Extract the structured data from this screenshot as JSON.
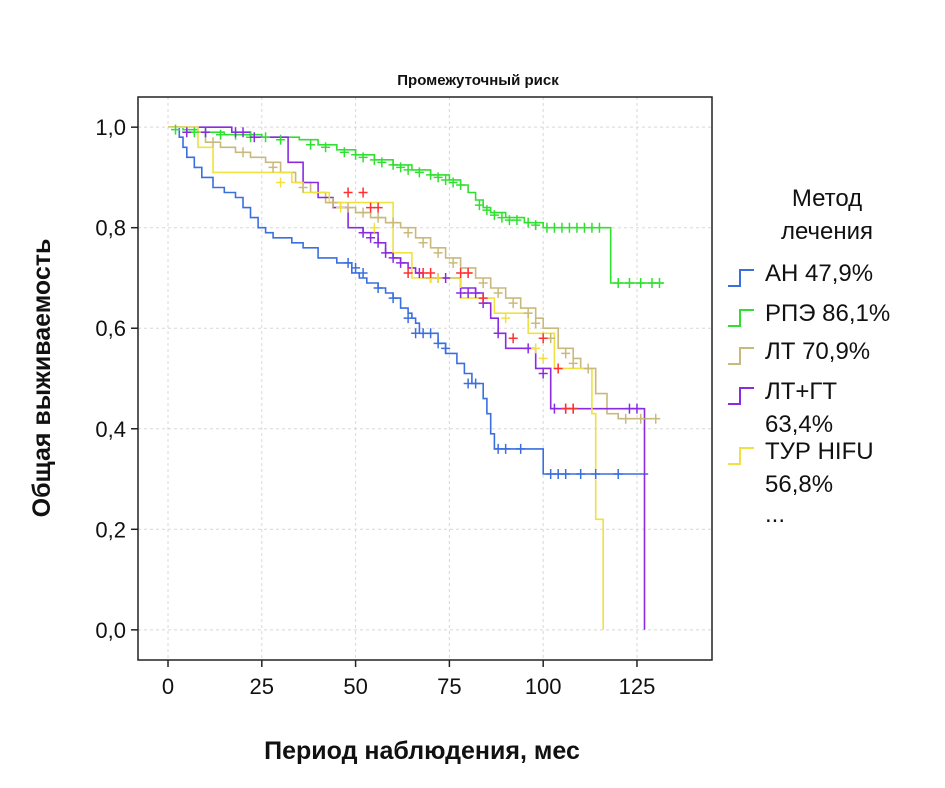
{
  "chart_data": {
    "type": "line",
    "title": "Промежуточный риск",
    "xlabel": "Период наблюдения, мес",
    "ylabel": "Общая выживаемость",
    "xlim": [
      -8,
      145
    ],
    "ylim": [
      -0.06,
      1.06
    ],
    "x_ticks": [
      0,
      25,
      50,
      75,
      100,
      125
    ],
    "x_tick_labels": [
      "0",
      "25",
      "50",
      "75",
      "100",
      "125"
    ],
    "y_ticks": [
      0.0,
      0.2,
      0.4,
      0.6,
      0.8,
      1.0
    ],
    "y_tick_labels": [
      "0,0",
      "0,2",
      "0,4",
      "0,6",
      "0,8",
      "1,0"
    ],
    "grid": true,
    "legend_position": "right",
    "legend_title": [
      "Метод",
      "лечения"
    ],
    "legend_more": "...",
    "series": [
      {
        "name": "АН 47,9%",
        "label_lines": [
          "АН 47,9%"
        ],
        "color": "#3a6fe0",
        "steps": [
          [
            0,
            1.0
          ],
          [
            3,
            0.98
          ],
          [
            4,
            0.96
          ],
          [
            5,
            0.94
          ],
          [
            7,
            0.92
          ],
          [
            9,
            0.9
          ],
          [
            12,
            0.88
          ],
          [
            15,
            0.87
          ],
          [
            18,
            0.86
          ],
          [
            20,
            0.84
          ],
          [
            22,
            0.82
          ],
          [
            24,
            0.8
          ],
          [
            26,
            0.79
          ],
          [
            28,
            0.78
          ],
          [
            33,
            0.77
          ],
          [
            36,
            0.76
          ],
          [
            40,
            0.74
          ],
          [
            45,
            0.73
          ],
          [
            49,
            0.71
          ],
          [
            51,
            0.7
          ],
          [
            53,
            0.69
          ],
          [
            56,
            0.68
          ],
          [
            58,
            0.67
          ],
          [
            60,
            0.66
          ],
          [
            62,
            0.64
          ],
          [
            64,
            0.63
          ],
          [
            65,
            0.62
          ],
          [
            66,
            0.61
          ],
          [
            67,
            0.59
          ],
          [
            72,
            0.57
          ],
          [
            74,
            0.55
          ],
          [
            77,
            0.53
          ],
          [
            79,
            0.51
          ],
          [
            81,
            0.49
          ],
          [
            84,
            0.46
          ],
          [
            85,
            0.43
          ],
          [
            86,
            0.39
          ],
          [
            87,
            0.36
          ],
          [
            100,
            0.31
          ],
          [
            128,
            0.31
          ]
        ],
        "censored": [
          [
            48,
            0.73
          ],
          [
            50,
            0.72
          ],
          [
            52,
            0.71
          ],
          [
            56,
            0.68
          ],
          [
            60,
            0.66
          ],
          [
            64,
            0.62
          ],
          [
            66,
            0.59
          ],
          [
            68,
            0.59
          ],
          [
            70,
            0.59
          ],
          [
            72,
            0.57
          ],
          [
            74,
            0.56
          ],
          [
            80,
            0.49
          ],
          [
            82,
            0.49
          ],
          [
            88,
            0.36
          ],
          [
            90,
            0.36
          ],
          [
            94,
            0.36
          ],
          [
            102,
            0.31
          ],
          [
            104,
            0.31
          ],
          [
            106,
            0.31
          ],
          [
            110,
            0.31
          ],
          [
            114,
            0.31
          ],
          [
            120,
            0.31
          ]
        ]
      },
      {
        "name": "РПЭ 86,1%",
        "label_lines": [
          "РПЭ 86,1%"
        ],
        "color": "#30e030",
        "steps": [
          [
            0,
            1.0
          ],
          [
            4,
            0.995
          ],
          [
            8,
            0.99
          ],
          [
            15,
            0.985
          ],
          [
            25,
            0.98
          ],
          [
            35,
            0.975
          ],
          [
            40,
            0.965
          ],
          [
            45,
            0.955
          ],
          [
            50,
            0.945
          ],
          [
            55,
            0.935
          ],
          [
            60,
            0.925
          ],
          [
            65,
            0.915
          ],
          [
            70,
            0.905
          ],
          [
            75,
            0.895
          ],
          [
            78,
            0.885
          ],
          [
            80,
            0.87
          ],
          [
            82,
            0.855
          ],
          [
            84,
            0.84
          ],
          [
            86,
            0.83
          ],
          [
            90,
            0.82
          ],
          [
            95,
            0.81
          ],
          [
            100,
            0.8
          ],
          [
            118,
            0.69
          ],
          [
            132,
            0.69
          ]
        ],
        "censored": [
          [
            2,
            0.995
          ],
          [
            7,
            0.99
          ],
          [
            10,
            0.99
          ],
          [
            14,
            0.985
          ],
          [
            18,
            0.985
          ],
          [
            22,
            0.98
          ],
          [
            26,
            0.98
          ],
          [
            30,
            0.975
          ],
          [
            38,
            0.965
          ],
          [
            42,
            0.96
          ],
          [
            47,
            0.95
          ],
          [
            50,
            0.945
          ],
          [
            52,
            0.94
          ],
          [
            55,
            0.935
          ],
          [
            57,
            0.93
          ],
          [
            60,
            0.925
          ],
          [
            62,
            0.92
          ],
          [
            64,
            0.915
          ],
          [
            67,
            0.91
          ],
          [
            70,
            0.905
          ],
          [
            72,
            0.9
          ],
          [
            74,
            0.895
          ],
          [
            76,
            0.89
          ],
          [
            78,
            0.885
          ],
          [
            83,
            0.845
          ],
          [
            85,
            0.835
          ],
          [
            87,
            0.825
          ],
          [
            89,
            0.82
          ],
          [
            91,
            0.815
          ],
          [
            93,
            0.815
          ],
          [
            96,
            0.81
          ],
          [
            98,
            0.805
          ],
          [
            101,
            0.8
          ],
          [
            103,
            0.8
          ],
          [
            105,
            0.8
          ],
          [
            107,
            0.8
          ],
          [
            109,
            0.8
          ],
          [
            111,
            0.8
          ],
          [
            113,
            0.8
          ],
          [
            115,
            0.8
          ],
          [
            120,
            0.69
          ],
          [
            123,
            0.69
          ],
          [
            126,
            0.69
          ],
          [
            129,
            0.69
          ],
          [
            131,
            0.69
          ]
        ]
      },
      {
        "name": "ЛТ 70,9%",
        "label_lines": [
          "ЛТ 70,9%"
        ],
        "color": "#c9b97c",
        "steps": [
          [
            0,
            1.0
          ],
          [
            5,
            0.99
          ],
          [
            10,
            0.97
          ],
          [
            14,
            0.96
          ],
          [
            18,
            0.95
          ],
          [
            22,
            0.94
          ],
          [
            26,
            0.93
          ],
          [
            30,
            0.91
          ],
          [
            34,
            0.89
          ],
          [
            38,
            0.87
          ],
          [
            42,
            0.85
          ],
          [
            46,
            0.84
          ],
          [
            50,
            0.83
          ],
          [
            54,
            0.82
          ],
          [
            58,
            0.81
          ],
          [
            62,
            0.8
          ],
          [
            66,
            0.78
          ],
          [
            70,
            0.76
          ],
          [
            74,
            0.74
          ],
          [
            78,
            0.72
          ],
          [
            82,
            0.7
          ],
          [
            86,
            0.68
          ],
          [
            90,
            0.66
          ],
          [
            94,
            0.64
          ],
          [
            98,
            0.62
          ],
          [
            100,
            0.6
          ],
          [
            104,
            0.56
          ],
          [
            108,
            0.54
          ],
          [
            110,
            0.52
          ],
          [
            114,
            0.47
          ],
          [
            117,
            0.43
          ],
          [
            120,
            0.42
          ],
          [
            131,
            0.42
          ]
        ],
        "censored": [
          [
            12,
            0.97
          ],
          [
            20,
            0.95
          ],
          [
            28,
            0.92
          ],
          [
            36,
            0.88
          ],
          [
            44,
            0.85
          ],
          [
            48,
            0.84
          ],
          [
            52,
            0.83
          ],
          [
            56,
            0.82
          ],
          [
            60,
            0.81
          ],
          [
            64,
            0.79
          ],
          [
            68,
            0.77
          ],
          [
            72,
            0.75
          ],
          [
            76,
            0.73
          ],
          [
            80,
            0.71
          ],
          [
            84,
            0.69
          ],
          [
            88,
            0.67
          ],
          [
            92,
            0.65
          ],
          [
            96,
            0.63
          ],
          [
            98,
            0.61
          ],
          [
            102,
            0.58
          ],
          [
            106,
            0.55
          ],
          [
            108,
            0.53
          ],
          [
            112,
            0.52
          ],
          [
            122,
            0.42
          ],
          [
            126,
            0.42
          ],
          [
            130,
            0.42
          ]
        ]
      },
      {
        "name": "ЛТ+ГТ 63,4%",
        "label_lines": [
          "ЛТ+ГТ",
          "63,4%"
        ],
        "color": "#8a2be2",
        "steps": [
          [
            0,
            1.0
          ],
          [
            17,
            0.99
          ],
          [
            22,
            0.98
          ],
          [
            32,
            0.93
          ],
          [
            36,
            0.89
          ],
          [
            40,
            0.86
          ],
          [
            44,
            0.84
          ],
          [
            48,
            0.8
          ],
          [
            52,
            0.79
          ],
          [
            56,
            0.77
          ],
          [
            58,
            0.75
          ],
          [
            60,
            0.74
          ],
          [
            62,
            0.73
          ],
          [
            64,
            0.72
          ],
          [
            66,
            0.71
          ],
          [
            68,
            0.7
          ],
          [
            75,
            0.7
          ],
          [
            78,
            0.68
          ],
          [
            82,
            0.67
          ],
          [
            84,
            0.65
          ],
          [
            86,
            0.62
          ],
          [
            88,
            0.59
          ],
          [
            90,
            0.56
          ],
          [
            98,
            0.52
          ],
          [
            102,
            0.44
          ],
          [
            106,
            0.44
          ],
          [
            116,
            0.44
          ],
          [
            126,
            0.44
          ],
          [
            127,
            0.0
          ]
        ],
        "censored": [
          [
            5,
            0.99
          ],
          [
            10,
            0.99
          ],
          [
            18,
            0.99
          ],
          [
            20,
            0.99
          ],
          [
            23,
            0.98
          ],
          [
            52,
            0.79
          ],
          [
            54,
            0.78
          ],
          [
            56,
            0.77
          ],
          [
            58,
            0.75
          ],
          [
            60,
            0.74
          ],
          [
            62,
            0.73
          ],
          [
            67,
            0.71
          ],
          [
            70,
            0.7
          ],
          [
            72,
            0.7
          ],
          [
            74,
            0.7
          ],
          [
            78,
            0.67
          ],
          [
            80,
            0.67
          ],
          [
            82,
            0.67
          ],
          [
            84,
            0.65
          ],
          [
            88,
            0.59
          ],
          [
            96,
            0.56
          ],
          [
            100,
            0.51
          ],
          [
            103,
            0.44
          ],
          [
            106,
            0.44
          ],
          [
            108,
            0.44
          ],
          [
            123,
            0.44
          ],
          [
            125,
            0.44
          ]
        ]
      },
      {
        "name": "ТУР HIFU 56,8%",
        "label_lines": [
          "ТУР HIFU",
          "56,8%"
        ],
        "color": "#f0e040",
        "steps": [
          [
            0,
            1.0
          ],
          [
            8,
            0.96
          ],
          [
            12,
            0.91
          ],
          [
            33,
            0.89
          ],
          [
            36,
            0.87
          ],
          [
            43,
            0.85
          ],
          [
            60,
            0.75
          ],
          [
            65,
            0.7
          ],
          [
            78,
            0.66
          ],
          [
            87,
            0.63
          ],
          [
            96,
            0.59
          ],
          [
            103,
            0.52
          ],
          [
            113,
            0.43
          ],
          [
            114,
            0.22
          ],
          [
            116,
            0.0
          ]
        ],
        "censored": [
          [
            30,
            0.89
          ],
          [
            46,
            0.84
          ],
          [
            55,
            0.8
          ],
          [
            70,
            0.7
          ],
          [
            72,
            0.7
          ],
          [
            90,
            0.62
          ],
          [
            98,
            0.56
          ],
          [
            100,
            0.54
          ]
        ]
      }
    ],
    "highlighted_censors": {
      "color": "#ff3030",
      "points": [
        [
          48,
          0.87
        ],
        [
          52,
          0.87
        ],
        [
          54,
          0.84
        ],
        [
          56,
          0.84
        ],
        [
          64,
          0.71
        ],
        [
          68,
          0.71
        ],
        [
          70,
          0.71
        ],
        [
          78,
          0.71
        ],
        [
          80,
          0.71
        ],
        [
          84,
          0.66
        ],
        [
          92,
          0.58
        ],
        [
          100,
          0.58
        ],
        [
          104,
          0.52
        ],
        [
          106,
          0.44
        ],
        [
          108,
          0.44
        ]
      ]
    }
  }
}
